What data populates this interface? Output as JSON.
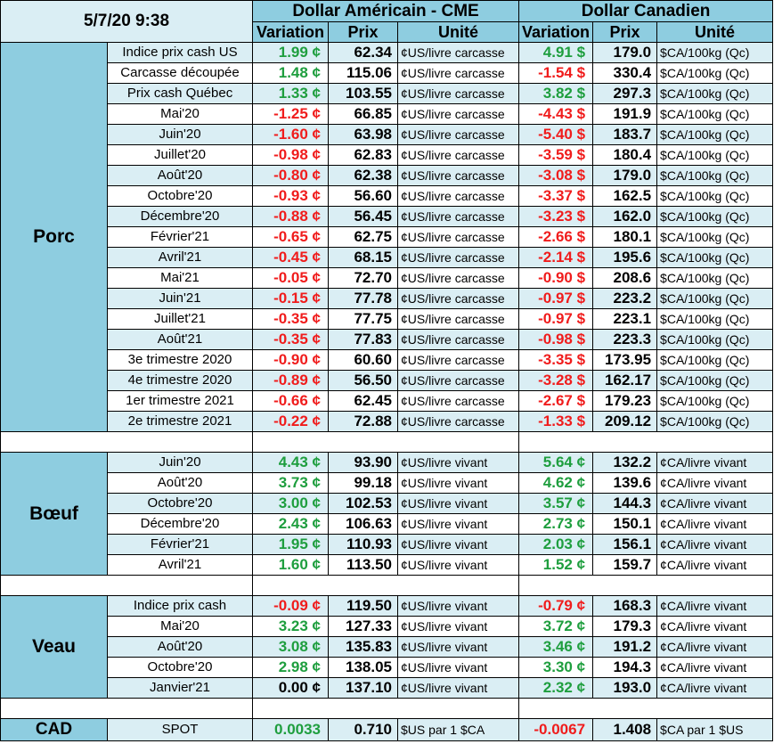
{
  "header": {
    "timestamp": "5/7/20 9:38",
    "usd_title": "Dollar Américain - CME",
    "cad_title": "Dollar Canadien",
    "col_variation": "Variation",
    "col_prix": "Prix",
    "col_unite": "Unité"
  },
  "colors": {
    "positive": "#1e9e3e",
    "negative": "#f01c1c",
    "section_bg": "#8ecde0",
    "row_alt_bg": "#daeef4"
  },
  "sections": [
    {
      "name": "Porc",
      "rows": [
        {
          "label": "Indice prix cash US",
          "usd_var": "1.99 ¢",
          "usd_price": "62.34",
          "usd_unit": "¢US/livre carcasse",
          "cad_var": "4.91 $",
          "cad_price": "179.0",
          "cad_unit": "$CA/100kg (Qc)"
        },
        {
          "label": "Carcasse découpée",
          "usd_var": "1.48 ¢",
          "usd_price": "115.06",
          "usd_unit": "¢US/livre carcasse",
          "cad_var": "-1.54 $",
          "cad_price": "330.4",
          "cad_unit": "$CA/100kg (Qc)"
        },
        {
          "label": "Prix cash Québec",
          "usd_var": "1.33 ¢",
          "usd_price": "103.55",
          "usd_unit": "¢US/livre carcasse",
          "cad_var": "3.82 $",
          "cad_price": "297.3",
          "cad_unit": "$CA/100kg (Qc)"
        },
        {
          "label": "Mai'20",
          "usd_var": "-1.25 ¢",
          "usd_price": "66.85",
          "usd_unit": "¢US/livre carcasse",
          "cad_var": "-4.43 $",
          "cad_price": "191.9",
          "cad_unit": "$CA/100kg (Qc)"
        },
        {
          "label": "Juin'20",
          "usd_var": "-1.60 ¢",
          "usd_price": "63.98",
          "usd_unit": "¢US/livre carcasse",
          "cad_var": "-5.40 $",
          "cad_price": "183.7",
          "cad_unit": "$CA/100kg (Qc)"
        },
        {
          "label": "Juillet'20",
          "usd_var": "-0.98 ¢",
          "usd_price": "62.83",
          "usd_unit": "¢US/livre carcasse",
          "cad_var": "-3.59 $",
          "cad_price": "180.4",
          "cad_unit": "$CA/100kg (Qc)"
        },
        {
          "label": "Août'20",
          "usd_var": "-0.80 ¢",
          "usd_price": "62.38",
          "usd_unit": "¢US/livre carcasse",
          "cad_var": "-3.08 $",
          "cad_price": "179.0",
          "cad_unit": "$CA/100kg (Qc)"
        },
        {
          "label": "Octobre'20",
          "usd_var": "-0.93 ¢",
          "usd_price": "56.60",
          "usd_unit": "¢US/livre carcasse",
          "cad_var": "-3.37 $",
          "cad_price": "162.5",
          "cad_unit": "$CA/100kg (Qc)"
        },
        {
          "label": "Décembre'20",
          "usd_var": "-0.88 ¢",
          "usd_price": "56.45",
          "usd_unit": "¢US/livre carcasse",
          "cad_var": "-3.23 $",
          "cad_price": "162.0",
          "cad_unit": "$CA/100kg (Qc)"
        },
        {
          "label": "Février'21",
          "usd_var": "-0.65 ¢",
          "usd_price": "62.75",
          "usd_unit": "¢US/livre carcasse",
          "cad_var": "-2.66 $",
          "cad_price": "180.1",
          "cad_unit": "$CA/100kg (Qc)"
        },
        {
          "label": "Avril'21",
          "usd_var": "-0.45 ¢",
          "usd_price": "68.15",
          "usd_unit": "¢US/livre carcasse",
          "cad_var": "-2.14 $",
          "cad_price": "195.6",
          "cad_unit": "$CA/100kg (Qc)"
        },
        {
          "label": "Mai'21",
          "usd_var": "-0.05 ¢",
          "usd_price": "72.70",
          "usd_unit": "¢US/livre carcasse",
          "cad_var": "-0.90 $",
          "cad_price": "208.6",
          "cad_unit": "$CA/100kg (Qc)"
        },
        {
          "label": "Juin'21",
          "usd_var": "-0.15 ¢",
          "usd_price": "77.78",
          "usd_unit": "¢US/livre carcasse",
          "cad_var": "-0.97 $",
          "cad_price": "223.2",
          "cad_unit": "$CA/100kg (Qc)"
        },
        {
          "label": "Juillet'21",
          "usd_var": "-0.35 ¢",
          "usd_price": "77.75",
          "usd_unit": "¢US/livre carcasse",
          "cad_var": "-0.97 $",
          "cad_price": "223.1",
          "cad_unit": "$CA/100kg (Qc)"
        },
        {
          "label": "Août'21",
          "usd_var": "-0.35 ¢",
          "usd_price": "77.83",
          "usd_unit": "¢US/livre carcasse",
          "cad_var": "-0.98 $",
          "cad_price": "223.3",
          "cad_unit": "$CA/100kg (Qc)"
        },
        {
          "label": "3e trimestre 2020",
          "usd_var": "-0.90 ¢",
          "usd_price": "60.60",
          "usd_unit": "¢US/livre carcasse",
          "cad_var": "-3.35 $",
          "cad_price": "173.95",
          "cad_unit": "$CA/100kg (Qc)"
        },
        {
          "label": "4e trimestre 2020",
          "usd_var": "-0.89 ¢",
          "usd_price": "56.50",
          "usd_unit": "¢US/livre carcasse",
          "cad_var": "-3.28 $",
          "cad_price": "162.17",
          "cad_unit": "$CA/100kg (Qc)"
        },
        {
          "label": "1er trimestre 2021",
          "usd_var": "-0.66 ¢",
          "usd_price": "62.45",
          "usd_unit": "¢US/livre carcasse",
          "cad_var": "-2.67 $",
          "cad_price": "179.23",
          "cad_unit": "$CA/100kg (Qc)"
        },
        {
          "label": "2e trimestre 2021",
          "usd_var": "-0.22 ¢",
          "usd_price": "72.88",
          "usd_unit": "¢US/livre carcasse",
          "cad_var": "-1.33 $",
          "cad_price": "209.12",
          "cad_unit": "$CA/100kg (Qc)"
        }
      ]
    },
    {
      "name": "Bœuf",
      "rows": [
        {
          "label": "Juin'20",
          "usd_var": "4.43 ¢",
          "usd_price": "93.90",
          "usd_unit": "¢US/livre vivant",
          "cad_var": "5.64 ¢",
          "cad_price": "132.2",
          "cad_unit": "¢CA/livre vivant"
        },
        {
          "label": "Août'20",
          "usd_var": "3.73 ¢",
          "usd_price": "99.18",
          "usd_unit": "¢US/livre vivant",
          "cad_var": "4.62 ¢",
          "cad_price": "139.6",
          "cad_unit": "¢CA/livre vivant"
        },
        {
          "label": "Octobre'20",
          "usd_var": "3.00 ¢",
          "usd_price": "102.53",
          "usd_unit": "¢US/livre vivant",
          "cad_var": "3.57 ¢",
          "cad_price": "144.3",
          "cad_unit": "¢CA/livre vivant"
        },
        {
          "label": "Décembre'20",
          "usd_var": "2.43 ¢",
          "usd_price": "106.63",
          "usd_unit": "¢US/livre vivant",
          "cad_var": "2.73 ¢",
          "cad_price": "150.1",
          "cad_unit": "¢CA/livre vivant"
        },
        {
          "label": "Février'21",
          "usd_var": "1.95 ¢",
          "usd_price": "110.93",
          "usd_unit": "¢US/livre vivant",
          "cad_var": "2.03 ¢",
          "cad_price": "156.1",
          "cad_unit": "¢CA/livre vivant"
        },
        {
          "label": "Avril'21",
          "usd_var": "1.60 ¢",
          "usd_price": "113.50",
          "usd_unit": "¢US/livre vivant",
          "cad_var": "1.52 ¢",
          "cad_price": "159.7",
          "cad_unit": "¢CA/livre vivant"
        }
      ]
    },
    {
      "name": "Veau",
      "rows": [
        {
          "label": "Indice prix cash",
          "usd_var": "-0.09 ¢",
          "usd_price": "119.50",
          "usd_unit": "¢US/livre vivant",
          "cad_var": "-0.79 ¢",
          "cad_price": "168.3",
          "cad_unit": "¢CA/livre vivant"
        },
        {
          "label": "Mai'20",
          "usd_var": "3.23 ¢",
          "usd_price": "127.33",
          "usd_unit": "¢US/livre vivant",
          "cad_var": "3.72 ¢",
          "cad_price": "179.3",
          "cad_unit": "¢CA/livre vivant"
        },
        {
          "label": "Août'20",
          "usd_var": "3.08 ¢",
          "usd_price": "135.83",
          "usd_unit": "¢US/livre vivant",
          "cad_var": "3.46 ¢",
          "cad_price": "191.2",
          "cad_unit": "¢CA/livre vivant"
        },
        {
          "label": "Octobre'20",
          "usd_var": "2.98 ¢",
          "usd_price": "138.05",
          "usd_unit": "¢US/livre vivant",
          "cad_var": "3.30 ¢",
          "cad_price": "194.3",
          "cad_unit": "¢CA/livre vivant"
        },
        {
          "label": "Janvier'21",
          "usd_var": "0.00 ¢",
          "usd_price": "137.10",
          "usd_unit": "¢US/livre vivant",
          "cad_var": "2.32 ¢",
          "cad_price": "193.0",
          "cad_unit": "¢CA/livre vivant"
        }
      ]
    }
  ],
  "cad": {
    "name": "CAD",
    "label": "SPOT",
    "usd_var": "0.0033",
    "usd_price": "0.710",
    "usd_unit": "$US par 1 $CA",
    "cad_var": "-0.0067",
    "cad_price": "1.408",
    "cad_unit": "$CA par 1 $US"
  }
}
